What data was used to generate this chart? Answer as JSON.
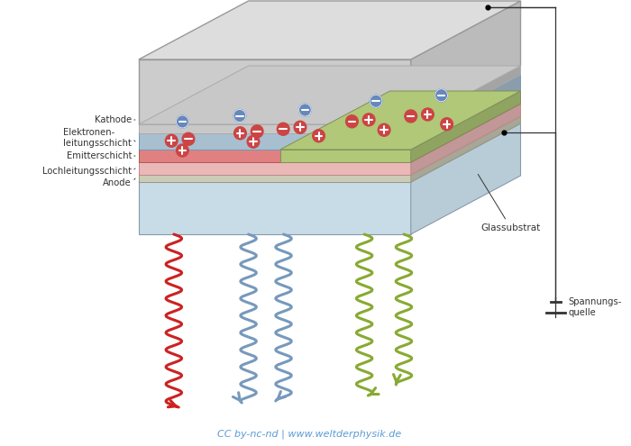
{
  "bg_color": "#ffffff",
  "credit_text": "CC by-nc-nd | www.weltderphysik.de",
  "credit_color": "#5b9bd5",
  "credit_fontsize": 8,
  "glassubstrat_label": "Glassubstrat",
  "spannungsquelle_label": "Spannungs-\nquelle",
  "colors": {
    "cathode_top": "#d8d8d8",
    "cathode_side": "#c0c0c0",
    "electron_layer": "#a8bfd0",
    "emitter_red": "#e08080",
    "emitter_green": "#b0c880",
    "hole_layer": "#e8a0a0",
    "anode": "#d0cfc0",
    "glass_side": "#c8dce8",
    "glass_top": "#ddeef8",
    "green_layer": "#b8cc90",
    "outline": "#888888"
  },
  "wavy_colors": {
    "red": "#cc2222",
    "blue": "#7799bb",
    "green": "#88aa33"
  },
  "label_color": "#333333"
}
